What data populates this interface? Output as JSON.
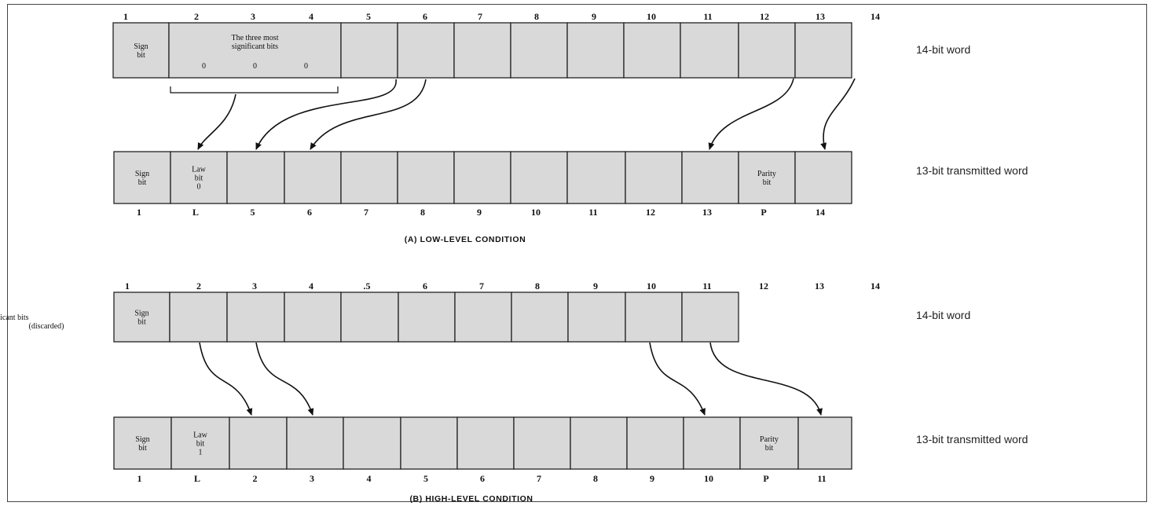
{
  "panels": [
    {
      "id": "low",
      "top_numbers": [
        "1",
        "2",
        "3",
        "4",
        "5",
        "6",
        "7",
        "8",
        "9",
        "10",
        "11",
        "12",
        "13",
        "14"
      ],
      "top_cells": [
        {
          "label": "Sign\nbit"
        },
        {
          "label": "The three most\nsignificant bits",
          "subvalues": [
            "0",
            "0",
            "0"
          ]
        },
        {
          "label": ""
        },
        {
          "label": ""
        },
        {
          "label": ""
        },
        {
          "label": ""
        },
        {
          "label": ""
        },
        {
          "label": ""
        },
        {
          "label": ""
        },
        {
          "label": ""
        },
        {
          "label": ""
        },
        {
          "label": ""
        }
      ],
      "top_word_label": "14-bit word",
      "bottom_cells": [
        {
          "label": "Sign\nbit"
        },
        {
          "label": "Law\nbit\n0"
        },
        {
          "label": ""
        },
        {
          "label": ""
        },
        {
          "label": ""
        },
        {
          "label": ""
        },
        {
          "label": ""
        },
        {
          "label": ""
        },
        {
          "label": ""
        },
        {
          "label": ""
        },
        {
          "label": ""
        },
        {
          "label": "Parity\nbit"
        },
        {
          "label": ""
        }
      ],
      "bottom_numbers": [
        "1",
        "L",
        "5",
        "6",
        "7",
        "8",
        "9",
        "10",
        "11",
        "12",
        "13",
        "P",
        "14"
      ],
      "bottom_word_label": "13-bit transmitted word",
      "caption": "(A) LOW-LEVEL CONDITION"
    },
    {
      "id": "high",
      "top_numbers": [
        "1",
        "2",
        "3",
        "4",
        ".5",
        "6",
        "7",
        "8",
        "9",
        "10",
        "11",
        "12",
        "13",
        "14"
      ],
      "top_cells": [
        {
          "label": "Sign\nbit"
        },
        {
          "label": ""
        },
        {
          "label": ""
        },
        {
          "label": ""
        },
        {
          "label": ""
        },
        {
          "label": ""
        },
        {
          "label": ""
        },
        {
          "label": ""
        },
        {
          "label": ""
        },
        {
          "label": ""
        },
        {
          "label": ""
        },
        {
          "label": "The three least\nsignificant bits\n(discarded)"
        }
      ],
      "top_word_label": "14-bit word",
      "bottom_cells": [
        {
          "label": "Sign\nbit"
        },
        {
          "label": "Law\nbit\n1"
        },
        {
          "label": ""
        },
        {
          "label": ""
        },
        {
          "label": ""
        },
        {
          "label": ""
        },
        {
          "label": ""
        },
        {
          "label": ""
        },
        {
          "label": ""
        },
        {
          "label": ""
        },
        {
          "label": ""
        },
        {
          "label": "Parity\nbit"
        },
        {
          "label": ""
        }
      ],
      "bottom_numbers": [
        "1",
        "L",
        "2",
        "3",
        "4",
        "5",
        "6",
        "7",
        "8",
        "9",
        "10",
        "P",
        "11"
      ],
      "bottom_word_label": "13-bit transmitted word",
      "caption": "(B) HIGH-LEVEL CONDITION"
    }
  ]
}
